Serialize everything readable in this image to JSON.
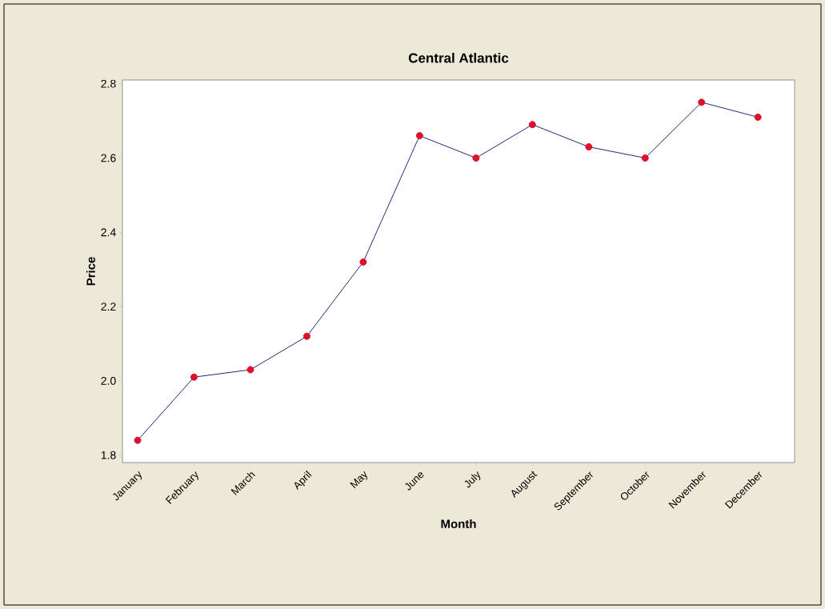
{
  "chart_data": {
    "type": "line",
    "title": "Central Atlantic",
    "xlabel": "Month",
    "ylabel": "Price",
    "categories": [
      "January",
      "February",
      "March",
      "April",
      "May",
      "June",
      "July",
      "August",
      "September",
      "October",
      "November",
      "December"
    ],
    "series": [
      {
        "color": "#1f2a7a",
        "values": [
          1.84,
          2.01,
          2.03,
          2.12,
          2.32,
          2.66,
          2.6,
          2.69,
          2.63,
          2.6,
          2.75,
          2.71
        ]
      }
    ],
    "marker": "circle",
    "line_style": "solid",
    "grid": false,
    "ylim": [
      1.78,
      2.81
    ],
    "yticks": [
      1.8,
      {
        "value": 2.0,
        "label": "2.0"
      },
      2.2,
      2.4,
      2.6,
      2.8
    ]
  }
}
